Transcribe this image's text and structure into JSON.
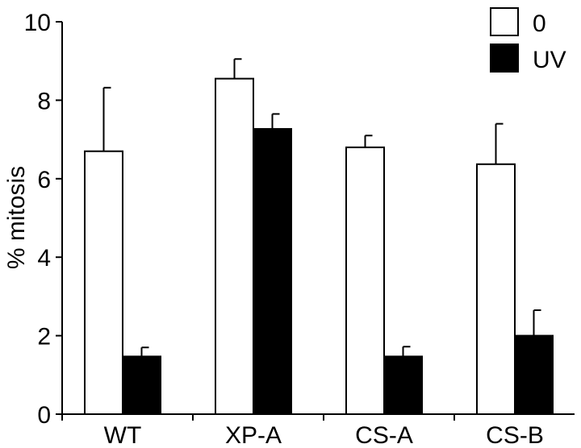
{
  "chart_data": {
    "type": "bar",
    "title": "",
    "xlabel": "",
    "ylabel": "% mitosis",
    "ylim": [
      0,
      10
    ],
    "yticks": [
      0,
      2,
      4,
      6,
      8,
      10
    ],
    "grid": false,
    "legend_position": "top-right",
    "categories": [
      "WT",
      "XP-A",
      "CS-A",
      "CS-B"
    ],
    "series": [
      {
        "name": "0",
        "color": "#ffffff",
        "values": [
          6.7,
          8.55,
          6.8,
          6.37
        ],
        "errors": [
          1.62,
          0.5,
          0.3,
          1.03
        ]
      },
      {
        "name": "UV",
        "color": "#000000",
        "values": [
          1.47,
          7.27,
          1.47,
          2.0
        ],
        "errors": [
          0.23,
          0.38,
          0.25,
          0.65
        ]
      }
    ]
  }
}
